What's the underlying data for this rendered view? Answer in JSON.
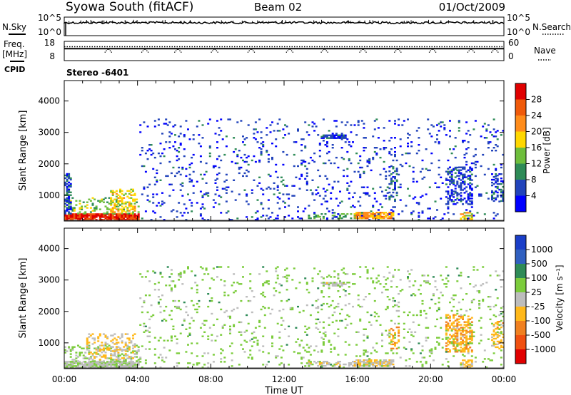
{
  "header": {
    "title": "Syowa South (fitACF)",
    "beam": "Beam 02",
    "date": "01/Oct/2009"
  },
  "chart_data": [
    {
      "type": "line",
      "name": "noise-panel",
      "left_label": "N.Sky",
      "right_label": "N.Search",
      "left_ticks": [
        "10^5",
        "10^0"
      ],
      "right_ticks": [
        "10^5",
        "10^0"
      ],
      "level": 0.7,
      "start_dip": true
    },
    {
      "type": "line",
      "name": "freq-nave-panel",
      "left_label_top": "Freq.",
      "left_label_unit": "[MHz]",
      "right_label": "Nave",
      "left_ticks": [
        "18",
        "8"
      ],
      "right_ticks": [
        "60",
        "0"
      ],
      "cpid_label": "CPID",
      "cpid_value": "Stereo  -6401",
      "freq_level": 0.62,
      "nave_level": 0.72,
      "nave_dip_hours": [
        2.4,
        4.4,
        6.2,
        8.2,
        10.2,
        12.3,
        14.2,
        16.3,
        18.2,
        20.1,
        22.2,
        23.5
      ]
    },
    {
      "type": "heatmap",
      "name": "power",
      "ylabel": "Slant Range [km]",
      "yticks": [
        1000,
        2000,
        3000,
        4000
      ],
      "ylim": [
        180,
        4650
      ],
      "xlim": [
        0,
        24
      ],
      "colorbar": {
        "label": "Power [dB]",
        "ticks": [
          "4",
          "8",
          "12",
          "16",
          "20",
          "24",
          "28"
        ],
        "lim": [
          0,
          32
        ]
      },
      "colors": [
        "#0000ff",
        "#2244bb",
        "#2e8b57",
        "#6ebe3c",
        "#ffd700",
        "#ff8c1a",
        "#f05a0a",
        "#e00000"
      ],
      "bands": [
        {
          "t0": 0.0,
          "t1": 4.1,
          "r0": 200,
          "r1": 400,
          "value": 29,
          "density": 0.9
        },
        {
          "t0": 0.0,
          "t1": 4.1,
          "r0": 400,
          "r1": 900,
          "value": 14,
          "density": 0.25
        },
        {
          "t0": 0.0,
          "t1": 0.4,
          "r0": 400,
          "r1": 1700,
          "value": 6,
          "density": 0.5
        },
        {
          "t0": 2.5,
          "t1": 3.9,
          "r0": 400,
          "r1": 1200,
          "value": 18,
          "density": 0.35
        },
        {
          "t0": 14.0,
          "t1": 15.3,
          "r0": 2800,
          "r1": 2900,
          "value": 6,
          "density": 0.85
        },
        {
          "t0": 15.8,
          "t1": 18.0,
          "r0": 250,
          "r1": 450,
          "value": 21,
          "density": 0.85
        },
        {
          "t0": 13.3,
          "t1": 15.8,
          "r0": 250,
          "r1": 400,
          "value": 12,
          "density": 0.35
        },
        {
          "t0": 17.7,
          "t1": 18.2,
          "r0": 800,
          "r1": 1900,
          "value": 6,
          "density": 0.35
        },
        {
          "t0": 20.8,
          "t1": 22.3,
          "r0": 700,
          "r1": 1900,
          "value": 5,
          "density": 0.4
        },
        {
          "t0": 21.6,
          "t1": 22.3,
          "r0": 200,
          "r1": 450,
          "value": 18,
          "density": 0.6
        },
        {
          "t0": 23.3,
          "t1": 24.0,
          "r0": 800,
          "r1": 1700,
          "value": 6,
          "density": 0.4
        },
        {
          "t0": 4.1,
          "t1": 24.0,
          "r0": 200,
          "r1": 3400,
          "value": 5,
          "density": 0.06
        }
      ]
    },
    {
      "type": "heatmap",
      "name": "velocity",
      "ylabel": "Slant Range [km]",
      "yticks": [
        1000,
        2000,
        3000,
        4000
      ],
      "ylim": [
        180,
        4650
      ],
      "xlim": [
        0,
        24
      ],
      "xticks": [
        "00:00",
        "04:00",
        "08:00",
        "12:00",
        "16:00",
        "20:00",
        "00:00"
      ],
      "xlabel": "Time UT",
      "colorbar": {
        "label": "Velocity [m s⁻¹]",
        "ticks": [
          "1000",
          "500",
          "100",
          "25",
          "-25",
          "-100",
          "-500",
          "-1000"
        ],
        "lim": [
          -1000,
          1000
        ]
      },
      "colors": [
        "#1a3ec8",
        "#3060c0",
        "#2e8b57",
        "#7ccc3c",
        "#bdbdbd",
        "#ffb81a",
        "#f08020",
        "#f05010",
        "#e00000"
      ],
      "bands": [
        {
          "t0": 0.0,
          "t1": 4.1,
          "r0": 200,
          "r1": 400,
          "value": 60,
          "density": 0.9
        },
        {
          "t0": 0.0,
          "t1": 4.1,
          "r0": 400,
          "r1": 900,
          "value": 150,
          "density": 0.25
        },
        {
          "t0": 1.2,
          "t1": 3.9,
          "r0": 450,
          "r1": 1300,
          "value": -150,
          "density": 0.3
        },
        {
          "t0": 14.0,
          "t1": 15.3,
          "r0": 2800,
          "r1": 2900,
          "value": 0,
          "density": 0.7
        },
        {
          "t0": 15.8,
          "t1": 18.0,
          "r0": 250,
          "r1": 450,
          "value": -60,
          "density": 0.8
        },
        {
          "t0": 13.3,
          "t1": 15.8,
          "r0": 250,
          "r1": 400,
          "value": 0,
          "density": 0.4
        },
        {
          "t0": 17.7,
          "t1": 18.3,
          "r0": 800,
          "r1": 1500,
          "value": -300,
          "density": 0.35
        },
        {
          "t0": 20.8,
          "t1": 22.3,
          "r0": 700,
          "r1": 1900,
          "value": -300,
          "density": 0.45
        },
        {
          "t0": 21.6,
          "t1": 22.3,
          "r0": 200,
          "r1": 450,
          "value": -150,
          "density": 0.6
        },
        {
          "t0": 23.3,
          "t1": 24.0,
          "r0": 800,
          "r1": 1700,
          "value": -200,
          "density": 0.4
        },
        {
          "t0": 4.1,
          "t1": 24.0,
          "r0": 200,
          "r1": 3400,
          "value": 200,
          "density": 0.06
        }
      ]
    }
  ]
}
